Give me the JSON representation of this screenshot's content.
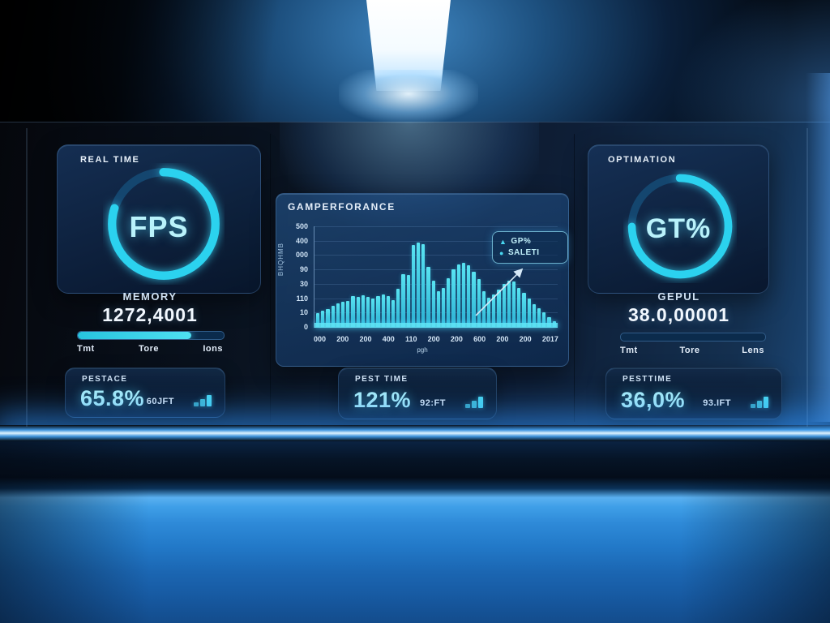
{
  "theme": {
    "accent": "#35d3ea",
    "accent_soft": "#a7ecf8",
    "panel_text": "#dce8f6",
    "glow_blue": "#2e8fe0",
    "ring_track": "#14466f"
  },
  "left_panel": {
    "header": "REAL TIME",
    "gauge": {
      "label": "FPS",
      "arc_pct": 80
    },
    "metric": {
      "label": "MEMORY",
      "value": "1272,4001"
    },
    "progress": {
      "pct": 78,
      "ticks": [
        "Tmt",
        "Tore",
        "Ions"
      ]
    },
    "stat": {
      "label": "PESTACE",
      "value": "65.8%",
      "sub": "60JFT",
      "icon": "signal-bars"
    }
  },
  "center_panel": {
    "title": "GAMPERFORANCE",
    "legend": {
      "items": [
        {
          "marker": "▲",
          "label": "GP%"
        },
        {
          "marker": "●",
          "label": "SALETI"
        }
      ]
    },
    "stat": {
      "label": "PEST TIME",
      "value": "121%",
      "sub": "92:FT",
      "icon": "signal-bars"
    }
  },
  "right_panel": {
    "header": "OPTIMATION",
    "gauge": {
      "label": "GT%",
      "arc_pct": 75
    },
    "metric": {
      "label": "GEPUL",
      "value": "38.0,00001"
    },
    "progress": {
      "pct": 0,
      "ticks": [
        "Tmt",
        "Tore",
        "Lens"
      ]
    },
    "stat": {
      "label": "PESTTIME",
      "value": "36,0%",
      "sub": "93.IFT",
      "icon": "signal-bars"
    }
  },
  "chart_data": {
    "type": "bar",
    "title": "GAMPERFORANCE",
    "xlabel": "pgh",
    "ylabel": "BHQHMB",
    "ylim": [
      0,
      500
    ],
    "grid": true,
    "legend_position": "top-right",
    "y_ticks": [
      "500",
      "400",
      "000",
      "90",
      "30",
      "110",
      "10",
      "0"
    ],
    "x_ticks": [
      "000",
      "200",
      "200",
      "400",
      "110",
      "200",
      "200",
      "600",
      "200",
      "200",
      "2017"
    ],
    "values": [
      70,
      80,
      90,
      105,
      118,
      126,
      130,
      152,
      148,
      158,
      150,
      142,
      155,
      160,
      152,
      133,
      190,
      262,
      260,
      408,
      420,
      410,
      300,
      228,
      176,
      192,
      240,
      286,
      312,
      318,
      306,
      276,
      236,
      178,
      146,
      162,
      186,
      212,
      230,
      224,
      192,
      170,
      140,
      114,
      92,
      72,
      48,
      30
    ]
  }
}
